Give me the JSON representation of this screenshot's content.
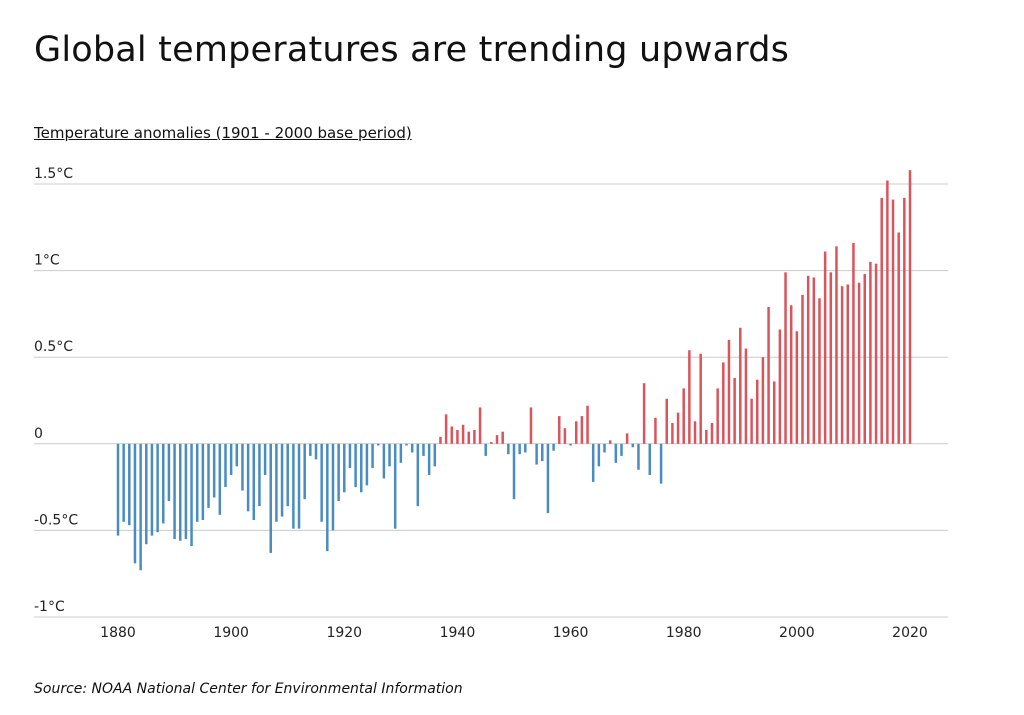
{
  "title": "Global temperatures are trending upwards",
  "subtitle": "Temperature anomalies (1901 - 2000 base period)",
  "source": "Source: NOAA National Center for Environmental Information",
  "colors": {
    "positive": "#d9545b",
    "negative": "#4a8cc1",
    "grid": "#cccccc"
  },
  "chart_data": {
    "type": "bar",
    "title": "Global temperatures are trending upwards",
    "ylabel": "Temperature anomalies (1901 - 2000 base period)",
    "xlabel": "",
    "ylim": [
      -1,
      1.5
    ],
    "xlim": [
      1880,
      2020
    ],
    "grid": true,
    "legend": "none",
    "y_ticks": [
      1.5,
      1,
      0.5,
      0,
      -0.5,
      -1
    ],
    "y_tick_labels": [
      "1.5°C",
      "1°C",
      "0.5°C",
      "0",
      "-0.5°C",
      "-1°C"
    ],
    "x_ticks": [
      1880,
      1900,
      1920,
      1940,
      1960,
      1980,
      2000,
      2020
    ],
    "x_tick_labels": [
      "1880",
      "1900",
      "1920",
      "1940",
      "1960",
      "1980",
      "2000",
      "2020"
    ],
    "x": [
      1880,
      1881,
      1882,
      1883,
      1884,
      1885,
      1886,
      1887,
      1888,
      1889,
      1890,
      1891,
      1892,
      1893,
      1894,
      1895,
      1896,
      1897,
      1898,
      1899,
      1900,
      1901,
      1902,
      1903,
      1904,
      1905,
      1906,
      1907,
      1908,
      1909,
      1910,
      1911,
      1912,
      1913,
      1914,
      1915,
      1916,
      1917,
      1918,
      1919,
      1920,
      1921,
      1922,
      1923,
      1924,
      1925,
      1926,
      1927,
      1928,
      1929,
      1930,
      1931,
      1932,
      1933,
      1934,
      1935,
      1936,
      1937,
      1938,
      1939,
      1940,
      1941,
      1942,
      1943,
      1944,
      1945,
      1946,
      1947,
      1948,
      1949,
      1950,
      1951,
      1952,
      1953,
      1954,
      1955,
      1956,
      1957,
      1958,
      1959,
      1960,
      1961,
      1962,
      1963,
      1964,
      1965,
      1966,
      1967,
      1968,
      1969,
      1970,
      1971,
      1972,
      1973,
      1974,
      1975,
      1976,
      1977,
      1978,
      1979,
      1980,
      1981,
      1982,
      1983,
      1984,
      1985,
      1986,
      1987,
      1988,
      1989,
      1990,
      1991,
      1992,
      1993,
      1994,
      1995,
      1996,
      1997,
      1998,
      1999,
      2000,
      2001,
      2002,
      2003,
      2004,
      2005,
      2006,
      2007,
      2008,
      2009,
      2010,
      2011,
      2012,
      2013,
      2014,
      2015,
      2016,
      2017,
      2018,
      2019,
      2020
    ],
    "values": [
      -0.53,
      -0.45,
      -0.47,
      -0.69,
      -0.73,
      -0.58,
      -0.53,
      -0.51,
      -0.46,
      -0.33,
      -0.55,
      -0.56,
      -0.55,
      -0.59,
      -0.45,
      -0.44,
      -0.37,
      -0.31,
      -0.41,
      -0.25,
      -0.18,
      -0.13,
      -0.27,
      -0.39,
      -0.44,
      -0.36,
      -0.18,
      -0.63,
      -0.45,
      -0.42,
      -0.36,
      -0.49,
      -0.49,
      -0.32,
      -0.07,
      -0.09,
      -0.45,
      -0.62,
      -0.5,
      -0.33,
      -0.28,
      -0.14,
      -0.25,
      -0.28,
      -0.24,
      -0.14,
      -0.01,
      -0.2,
      -0.13,
      -0.49,
      -0.11,
      -0.01,
      -0.05,
      -0.36,
      -0.07,
      -0.18,
      -0.13,
      0.04,
      0.17,
      0.1,
      0.08,
      0.11,
      0.07,
      0.08,
      0.21,
      -0.07,
      0.01,
      0.05,
      0.07,
      -0.06,
      -0.32,
      -0.06,
      -0.05,
      0.21,
      -0.12,
      -0.1,
      -0.4,
      -0.04,
      0.16,
      0.09,
      -0.01,
      0.13,
      0.16,
      0.22,
      -0.22,
      -0.13,
      -0.05,
      0.02,
      -0.11,
      -0.07,
      0.06,
      -0.02,
      -0.15,
      0.35,
      -0.18,
      0.15,
      -0.23,
      0.26,
      0.12,
      0.18,
      0.32,
      0.54,
      0.13,
      0.52,
      0.08,
      0.12,
      0.32,
      0.47,
      0.6,
      0.38,
      0.67,
      0.55,
      0.26,
      0.37,
      0.5,
      0.79,
      0.36,
      0.66,
      0.99,
      0.8,
      0.65,
      0.86,
      0.97,
      0.96,
      0.84,
      1.11,
      0.99,
      1.14,
      0.91,
      0.92,
      1.16,
      0.93,
      0.98,
      1.05,
      1.04,
      1.42,
      1.52,
      1.41,
      1.22,
      1.42,
      1.58
    ]
  }
}
